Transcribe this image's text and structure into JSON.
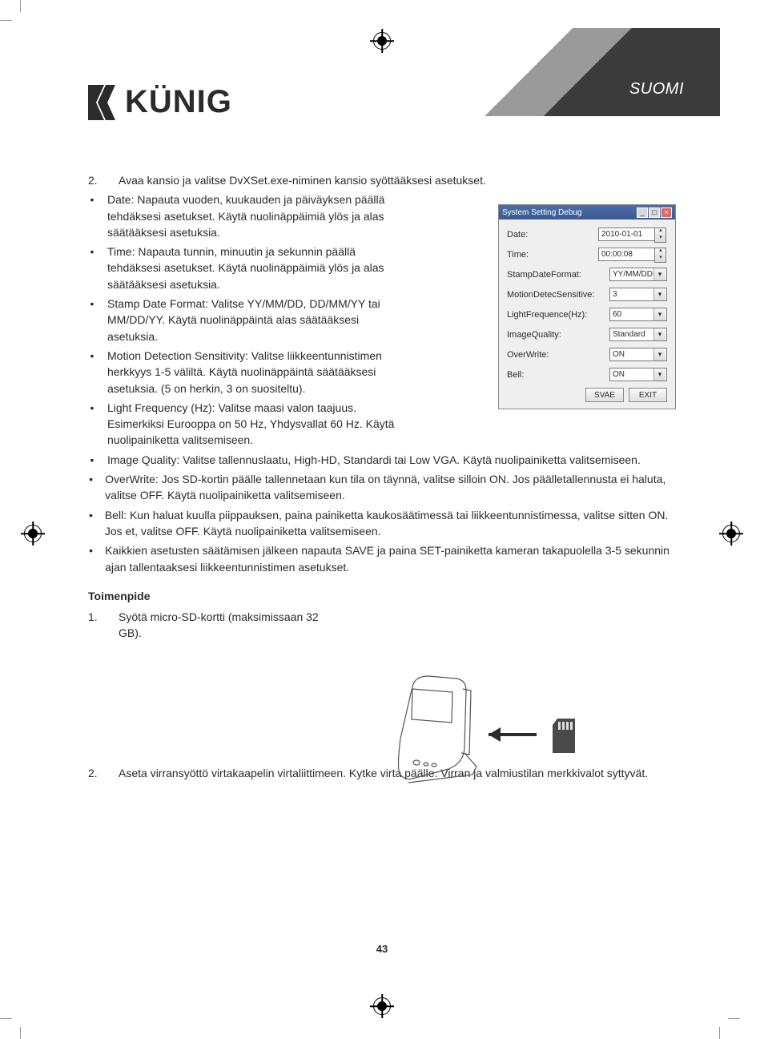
{
  "language_tag": "SUOMI",
  "logo_text": "KÜNIG",
  "page_number": "43",
  "main_list": {
    "item2": {
      "num": "2.",
      "text": "Avaa kansio ja valitse DvXSet.exe-niminen kansio syöttääksesi asetukset."
    }
  },
  "bullets_narrow": [
    "Date: Napauta vuoden, kuukauden ja päiväyksen päällä tehdäksesi asetukset. Käytä nuolinäppäimiä ylös ja alas säätääksesi asetuksia.",
    "Time: Napauta tunnin, minuutin ja sekunnin päällä tehdäksesi asetukset. Käytä nuolinäppäimiä ylös ja alas säätääksesi asetuksia.",
    "Stamp Date Format: Valitse YY/MM/DD, DD/MM/YY tai MM/DD/YY. Käytä nuolinäppäintä alas säätääksesi asetuksia.",
    "Motion Detection Sensitivity: Valitse liikkeentunnistimen herkkyys 1-5 väliltä. Käytä nuolinäppäintä säätääksesi asetuksia. (5 on herkin, 3 on suositeltu).",
    "Light Frequency (Hz): Valitse maasi valon taajuus. Esimerkiksi Eurooppa on 50 Hz, Yhdysvallat 60 Hz. Käytä nuolipainiketta valitsemiseen."
  ],
  "bullets_wide": [
    "Image Quality: Valitse tallennuslaatu, High-HD, Standardi tai Low VGA. Käytä nuolipainiketta valitsemiseen.",
    "OverWrite: Jos SD-kortin päälle tallennetaan kun tila on täynnä, valitse silloin ON. Jos päälletallennusta ei haluta, valitse OFF. Käytä nuolipainiketta valitsemiseen.",
    "Bell: Kun haluat kuulla piippauksen, paina painiketta kaukosäätimessä tai liikkeentunnistimessa, valitse sitten ON. Jos et, valitse OFF. Käytä nuolipainiketta valitsemiseen.",
    "Kaikkien asetusten säätämisen jälkeen napauta SAVE ja paina SET-painiketta kameran takapuolella 3-5 sekunnin ajan tallentaaksesi liikkeentunnistimen asetukset."
  ],
  "procedure": {
    "heading": "Toimenpide",
    "steps": [
      {
        "num": "1.",
        "text": "Syötä micro-SD-kortti (maksimissaan 32 GB)."
      },
      {
        "num": "2.",
        "text": "Aseta virransyöttö virtakaapelin virtaliittimeen. Kytke virta päälle. Virran ja valmiustilan merkkivalot syttyvät."
      }
    ]
  },
  "dialog": {
    "title": "System Setting Debug",
    "fields": [
      {
        "label": "Date:",
        "value": "2010-01-01",
        "type": "spin"
      },
      {
        "label": "Time:",
        "value": "00:00:08",
        "type": "spin"
      },
      {
        "label": "StampDateFormat:",
        "value": "YY/MM/DD",
        "type": "drop"
      },
      {
        "label": "MotionDetecSensitive:",
        "value": "3",
        "type": "drop"
      },
      {
        "label": "LightFrequence(Hz):",
        "value": "60",
        "type": "drop"
      },
      {
        "label": "ImageQuality:",
        "value": "Standard",
        "type": "drop"
      },
      {
        "label": "OverWrite:",
        "value": "ON",
        "type": "drop"
      },
      {
        "label": "Bell:",
        "value": "ON",
        "type": "drop"
      }
    ],
    "buttons": {
      "save": "SVAE",
      "exit": "EXIT"
    }
  },
  "colors": {
    "text": "#2b2b2b",
    "banner_light": "#9a9a9a",
    "banner_dark": "#3b3b3b",
    "dialog_bg": "#efefef",
    "dialog_title_from": "#4a6da8",
    "dialog_title_to": "#3a5a94"
  }
}
